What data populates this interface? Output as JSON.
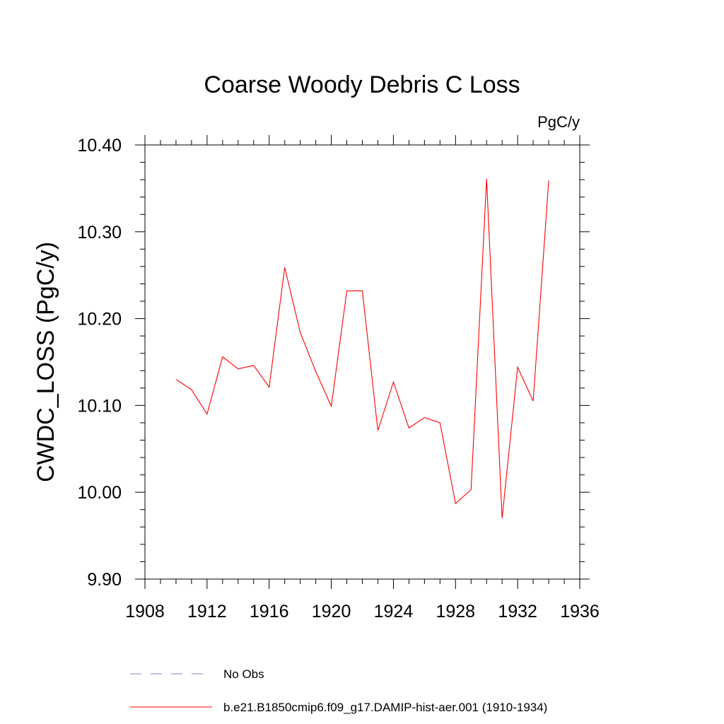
{
  "chart_data": {
    "type": "line",
    "title": "Coarse Woody Debris C Loss",
    "units_label": "PgC/y",
    "ylabel": "CWDC_LOSS  (PgC/y)",
    "xlabel": "",
    "xlim": [
      1908,
      1936
    ],
    "ylim": [
      9.9,
      10.4
    ],
    "x_ticks": [
      "1908",
      "1912",
      "1916",
      "1920",
      "1924",
      "1928",
      "1932",
      "1936"
    ],
    "y_ticks": [
      "9.90",
      "10.00",
      "10.10",
      "10.20",
      "10.30",
      "10.40"
    ],
    "grid": false,
    "legend_position": "bottom",
    "series": [
      {
        "name": "b.e21.B1850cmip6.f09_g17.DAMIP-hist-aer.001 (1910-1934)",
        "color": "#ff0000",
        "style": "solid",
        "x": [
          1910,
          1911,
          1912,
          1913,
          1914,
          1915,
          1916,
          1917,
          1918,
          1919,
          1920,
          1921,
          1922,
          1923,
          1924,
          1925,
          1926,
          1927,
          1928,
          1929,
          1930,
          1931,
          1932,
          1933,
          1934
        ],
        "values": [
          10.13,
          10.118,
          10.09,
          10.156,
          10.142,
          10.146,
          10.121,
          10.259,
          10.184,
          10.139,
          10.099,
          10.232,
          10.232,
          10.071,
          10.127,
          10.074,
          10.086,
          10.08,
          9.987,
          10.003,
          10.361,
          9.97,
          10.144,
          10.105,
          10.359
        ]
      }
    ],
    "legend": [
      {
        "label": "No Obs",
        "color": "#8a7fd0",
        "style": "dashed"
      },
      {
        "label": "b.e21.B1850cmip6.f09_g17.DAMIP-hist-aer.001 (1910-1934)",
        "color": "#ff0000",
        "style": "solid"
      }
    ]
  }
}
